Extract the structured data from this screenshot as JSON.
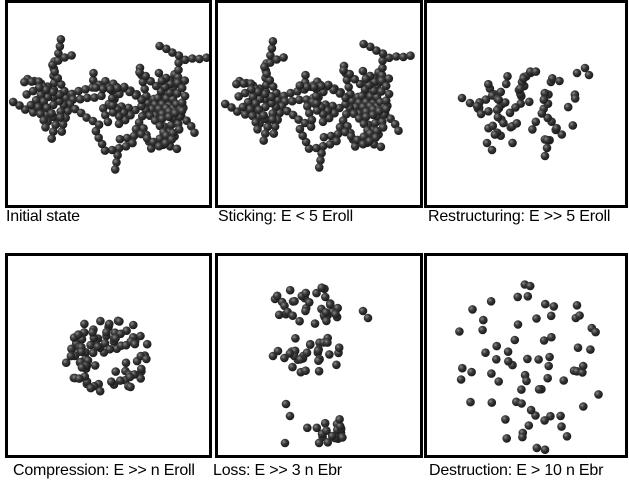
{
  "figure": {
    "panels": [
      {
        "id": "initial",
        "caption": "Initial state"
      },
      {
        "id": "sticking",
        "caption": "Sticking: E < 5 Eroll"
      },
      {
        "id": "restructuring",
        "caption": "Restructuring: E >> 5 Eroll"
      },
      {
        "id": "compression",
        "caption": "Compression: E >> n Eroll"
      },
      {
        "id": "loss",
        "caption": "Loss: E >> 3 n Ebr"
      },
      {
        "id": "destruction",
        "caption": "Destruction: E > 10 n Ebr"
      }
    ]
  },
  "colors": {
    "particle": "#1a1a1a",
    "frame": "#000000"
  }
}
